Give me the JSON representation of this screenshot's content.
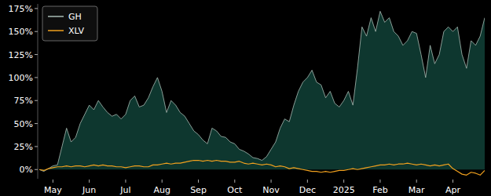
{
  "chart_data": {
    "type": "line",
    "categories": [
      null,
      null,
      null,
      "May",
      null,
      null,
      null,
      null,
      null,
      null,
      null,
      "Jun",
      null,
      null,
      null,
      null,
      null,
      null,
      null,
      "Jul",
      null,
      null,
      null,
      null,
      null,
      null,
      null,
      "Aug",
      null,
      null,
      null,
      null,
      null,
      null,
      null,
      "Sep",
      null,
      null,
      null,
      null,
      null,
      null,
      null,
      "Oct",
      null,
      null,
      null,
      null,
      null,
      null,
      null,
      "Nov",
      null,
      null,
      null,
      null,
      null,
      null,
      null,
      "Dec",
      null,
      null,
      null,
      null,
      null,
      null,
      null,
      "2025",
      null,
      null,
      null,
      null,
      null,
      null,
      null,
      "Feb",
      null,
      null,
      null,
      null,
      null,
      null,
      null,
      "Mar",
      null,
      null,
      null,
      null,
      null,
      null,
      null,
      "Apr",
      null,
      null,
      null,
      null,
      null,
      null,
      null
    ],
    "series": [
      {
        "name": "GH",
        "type": "area",
        "color": "#a9bdb5",
        "values": [
          0,
          -2,
          1,
          4,
          5,
          25,
          45,
          30,
          35,
          50,
          60,
          70,
          65,
          75,
          68,
          62,
          58,
          60,
          55,
          60,
          75,
          80,
          68,
          70,
          78,
          90,
          100,
          85,
          62,
          75,
          70,
          62,
          58,
          50,
          42,
          38,
          32,
          28,
          45,
          42,
          36,
          35,
          30,
          28,
          22,
          20,
          17,
          13,
          12,
          10,
          14,
          22,
          30,
          45,
          55,
          52,
          70,
          85,
          95,
          100,
          108,
          95,
          92,
          78,
          85,
          72,
          68,
          75,
          85,
          70,
          110,
          155,
          145,
          165,
          150,
          172,
          160,
          165,
          150,
          145,
          135,
          140,
          150,
          148,
          125,
          100,
          135,
          115,
          125,
          150,
          155,
          150,
          155,
          125,
          110,
          140,
          135,
          145,
          165
        ]
      },
      {
        "name": "XLV",
        "type": "line",
        "color": "#f0a01e",
        "values": [
          0,
          -1,
          1,
          2,
          3,
          3,
          4,
          3,
          4,
          4,
          3,
          4,
          5,
          4,
          5,
          4,
          4,
          3,
          3,
          2,
          3,
          4,
          4,
          3,
          3,
          5,
          5,
          6,
          7,
          6,
          7,
          7,
          8,
          9,
          10,
          10,
          9,
          10,
          9,
          10,
          9,
          9,
          8,
          8,
          9,
          7,
          6,
          7,
          6,
          5,
          6,
          5,
          3,
          4,
          3,
          1,
          2,
          1,
          0,
          -1,
          -2,
          -2,
          -3,
          -2,
          -3,
          -2,
          -1,
          -1,
          0,
          1,
          0,
          1,
          2,
          3,
          4,
          5,
          5,
          6,
          5,
          6,
          6,
          7,
          6,
          5,
          6,
          5,
          4,
          5,
          4,
          5,
          6,
          1,
          -2,
          -5,
          -6,
          -3,
          -4,
          -6,
          -1
        ]
      }
    ],
    "ylim": [
      -10,
      180
    ],
    "yticks": [
      {
        "value": 0,
        "label": "0%"
      },
      {
        "value": 25,
        "label": "25%"
      },
      {
        "value": 50,
        "label": "50%"
      },
      {
        "value": 75,
        "label": "75%"
      },
      {
        "value": 100,
        "label": "100%"
      },
      {
        "value": 125,
        "label": "125%"
      },
      {
        "value": 150,
        "label": "150%"
      },
      {
        "value": 175,
        "label": "175%"
      }
    ],
    "grid": false,
    "legend": "upper left"
  }
}
